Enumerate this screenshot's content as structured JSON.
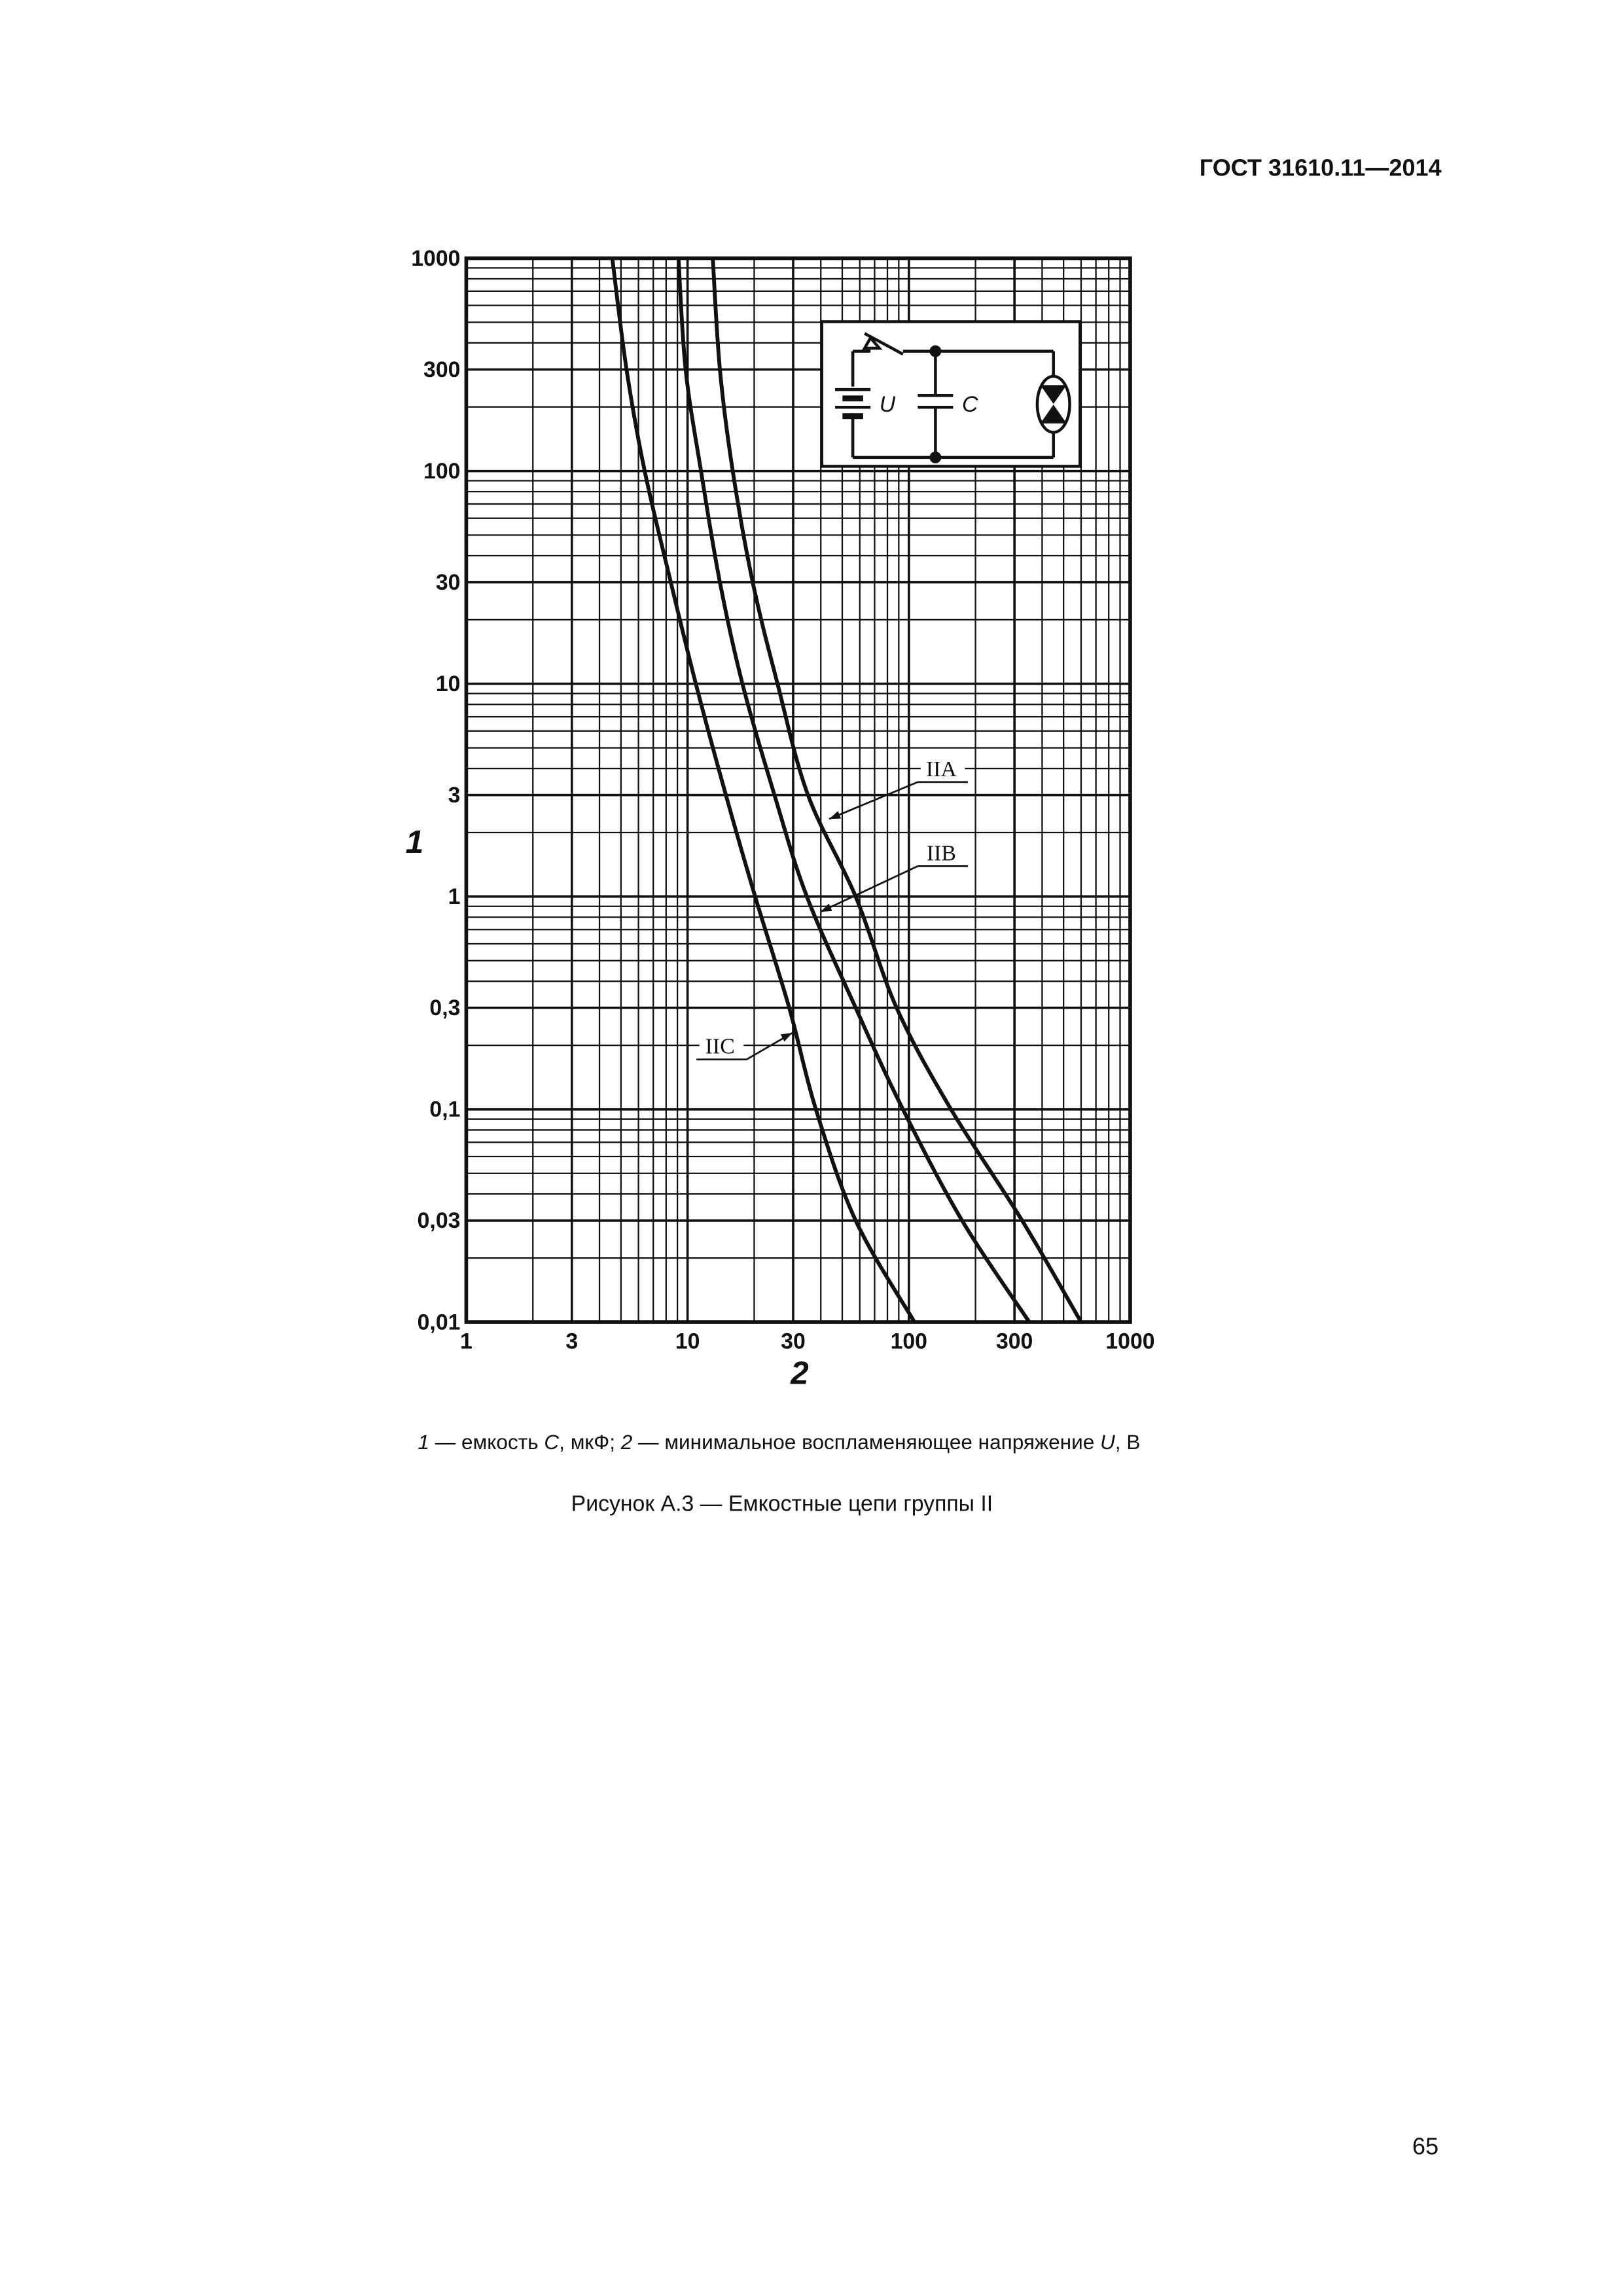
{
  "header": {
    "title": "ГОСТ 31610.11—2014"
  },
  "chart_data": {
    "type": "line",
    "x_label": "2",
    "y_label": "1",
    "log_x": true,
    "log_y": true,
    "grid": true,
    "xlim": [
      1,
      1000
    ],
    "ylim": [
      0.01,
      1000
    ],
    "xticks": [
      1,
      3,
      10,
      30,
      100,
      300,
      1000
    ],
    "yticks": [
      {
        "value": 0.01,
        "label": "0,01"
      },
      {
        "value": 0.03,
        "label": "0,03"
      },
      {
        "value": 0.1,
        "label": "0,1"
      },
      {
        "value": 0.3,
        "label": "0,3"
      },
      1,
      3,
      10,
      30,
      100,
      300,
      1000
    ],
    "xminorticks": [
      2,
      4,
      5,
      6,
      7,
      8,
      9,
      20,
      40,
      50,
      60,
      70,
      80,
      90,
      200,
      400,
      500,
      600,
      700,
      800,
      900
    ],
    "yminorticks": [
      0.02,
      0.04,
      0.05,
      0.06,
      0.07,
      0.08,
      0.09,
      0.2,
      0.4,
      0.5,
      0.6,
      0.7,
      0.8,
      0.9,
      2,
      4,
      5,
      6,
      7,
      8,
      9,
      20,
      40,
      50,
      60,
      70,
      80,
      90,
      200,
      400,
      500,
      600,
      700,
      800,
      900
    ],
    "series": [
      {
        "name": "IIA",
        "color": "#111111",
        "x": [
          13,
          14,
          16,
          19.7,
          25.5,
          35,
          57.5,
          88,
          155,
          325,
          600
        ],
        "values": [
          1000,
          300,
          100,
          30,
          10,
          3,
          1,
          0.3,
          0.1,
          0.03,
          0.01
        ]
      },
      {
        "name": "IIB",
        "color": "#111111",
        "x": [
          9.1,
          9.8,
          11.5,
          14,
          17.7,
          24.7,
          34.6,
          57.5,
          94,
          174,
          350
        ],
        "values": [
          1000,
          300,
          100,
          30,
          10,
          3,
          1,
          0.3,
          0.1,
          0.03,
          0.01
        ]
      },
      {
        "name": "IIC",
        "color": "#111111",
        "x": [
          4.57,
          5.3,
          6.4,
          8.4,
          10.9,
          14.9,
          20.2,
          28.8,
          38,
          57.5,
          106
        ],
        "values": [
          1000,
          300,
          100,
          30,
          10,
          3,
          1,
          0.3,
          0.1,
          0.03,
          0.01
        ]
      }
    ]
  },
  "inset": {
    "labels": [
      "U",
      "C"
    ]
  },
  "note": [
    "1",
    " — емкость ",
    "C",
    ", мкФ; ",
    "2",
    " — минимальное воспламеняющее напряжение ",
    "U",
    ", В"
  ],
  "caption": "Рисунок А.3 — Емкостные цепи группы II",
  "page_number": "65"
}
